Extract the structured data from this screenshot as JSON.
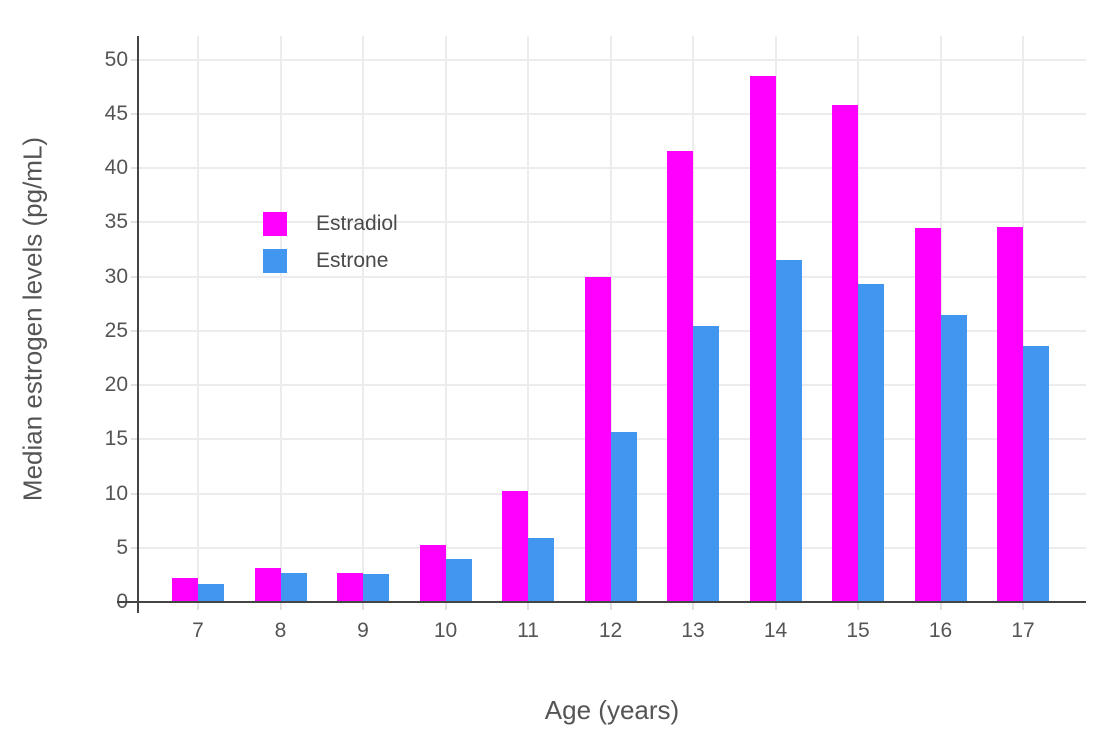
{
  "figure": {
    "background": "#FFFFFF",
    "axis_line_color": "#444444",
    "grid_color": "#ECECEC",
    "tick_color": "#E0E0E0",
    "text_color": "#555555"
  },
  "legend": {
    "items": [
      {
        "label": "Estradiol",
        "color": "#FF00FF"
      },
      {
        "label": "Estrone",
        "color": "#4196F0"
      }
    ]
  },
  "chart_data": {
    "type": "bar",
    "title": "",
    "xlabel": "Age (years)",
    "ylabel": "Median estrogen levels (pg/mL)",
    "categories": [
      7,
      8,
      9,
      10,
      11,
      12,
      13,
      14,
      15,
      16,
      17
    ],
    "series": [
      {
        "name": "Estradiol",
        "color": "#FF00FF",
        "values": [
          2.2,
          3.1,
          2.7,
          5.3,
          10.2,
          30.0,
          41.6,
          48.5,
          45.8,
          34.5,
          34.6
        ]
      },
      {
        "name": "Estrone",
        "color": "#4196F0",
        "values": [
          1.7,
          2.7,
          2.6,
          4.0,
          5.9,
          15.7,
          25.5,
          31.5,
          29.3,
          26.5,
          23.6
        ]
      }
    ],
    "ylim": [
      0,
      52.2
    ],
    "ytick_step": 5,
    "yticks": [
      0,
      5,
      10,
      15,
      20,
      25,
      30,
      35,
      40,
      45,
      50
    ],
    "grid": "horizontal-and-vertical",
    "legend_position": "inside-top-left"
  }
}
